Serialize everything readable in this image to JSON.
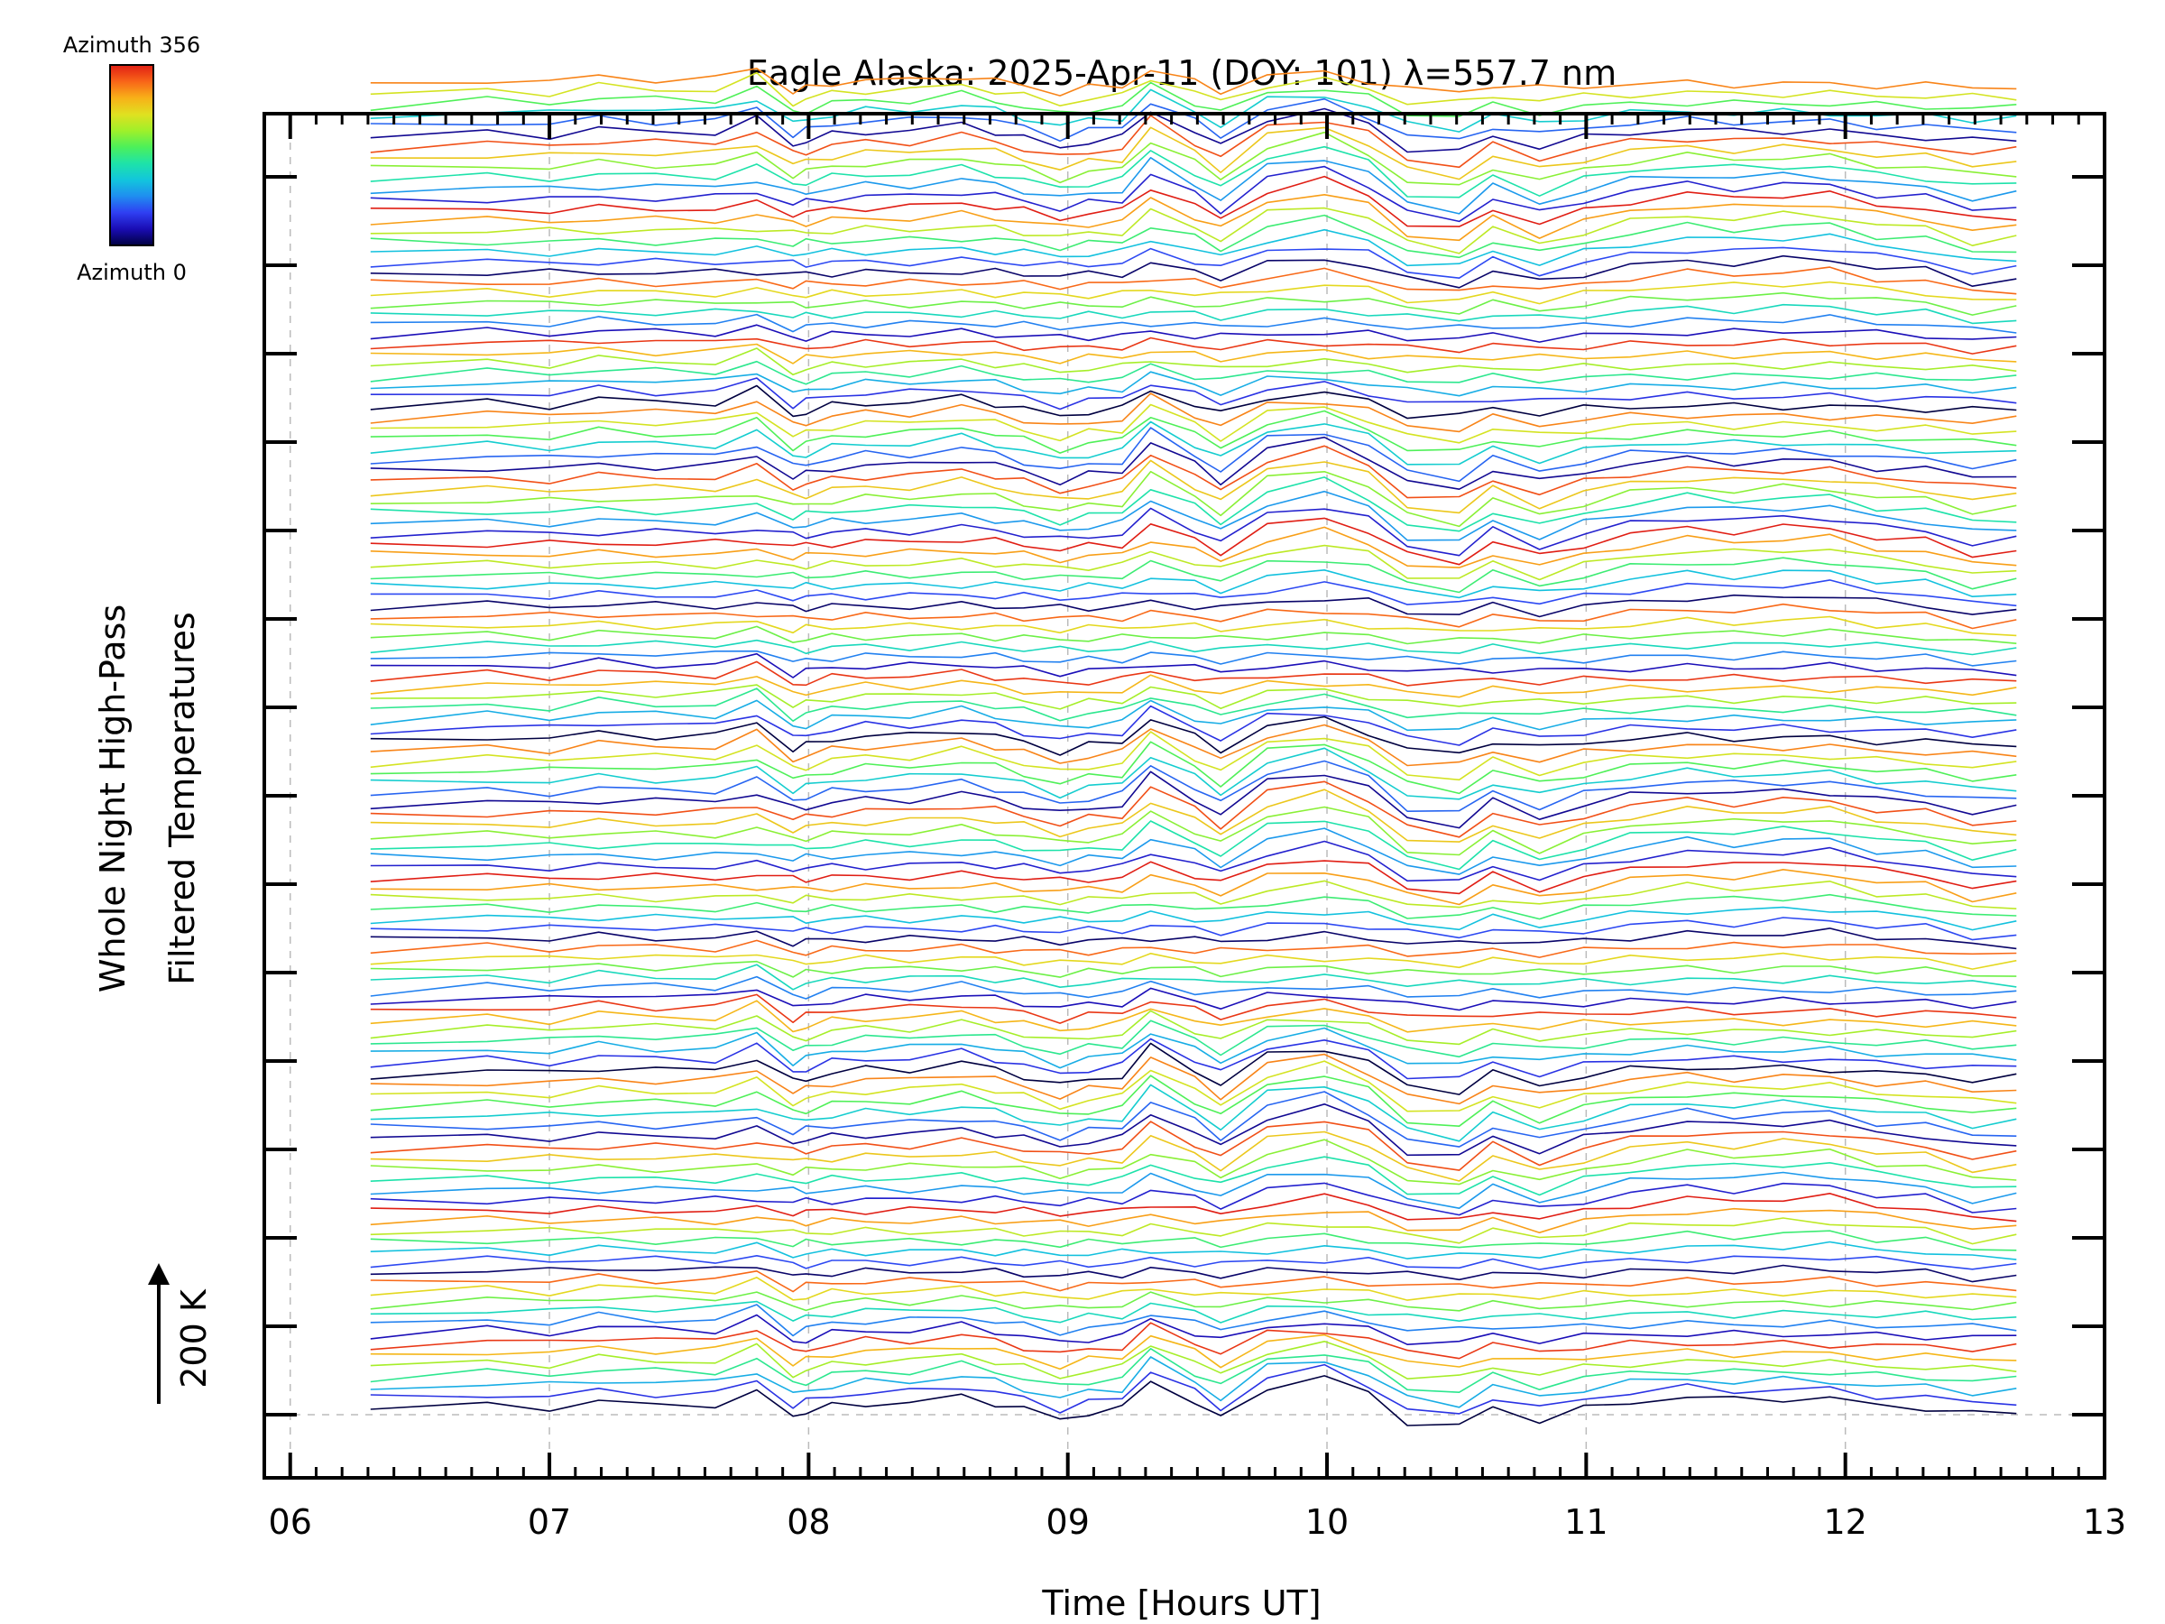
{
  "chart_data": {
    "type": "line",
    "title": "Eagle Alaska: 2025-Apr-11 (DOY: 101) λ=557.7 nm",
    "xlabel": "Time [Hours UT]",
    "ylabel_line1": "Whole Night High-Pass",
    "ylabel_line2": "Filtered Temperatures",
    "scale_bar_label": "200 K",
    "xlim": [
      5.9,
      13.0
    ],
    "x_ticks": [
      "06",
      "07",
      "08",
      "09",
      "10",
      "11",
      "12",
      "13"
    ],
    "x_tick_values": [
      6,
      7,
      8,
      9,
      10,
      11,
      12,
      13
    ],
    "grid": true,
    "colorbar": {
      "top_label": "Azimuth 356",
      "bottom_label": "Azimuth 0",
      "colormap": "rainbow"
    },
    "num_traces": 128,
    "trace_spacing_K": 50,
    "x": [
      6.31,
      6.76,
      7.0,
      7.19,
      7.41,
      7.64,
      7.8,
      7.94,
      7.99,
      8.09,
      8.22,
      8.39,
      8.59,
      8.72,
      8.83,
      8.97,
      9.08,
      9.21,
      9.32,
      9.49,
      9.59,
      9.77,
      9.99,
      10.16,
      10.31,
      10.51,
      10.64,
      10.82,
      10.99,
      11.17,
      11.39,
      11.57,
      11.76,
      11.94,
      12.12,
      12.31,
      12.49,
      12.66
    ],
    "base_profile_K": [
      0,
      10,
      5,
      15,
      10,
      10,
      30,
      -10,
      -5,
      5,
      10,
      10,
      20,
      10,
      0,
      -15,
      -5,
      0,
      45,
      10,
      -15,
      35,
      50,
      25,
      -20,
      -30,
      5,
      -20,
      0,
      15,
      25,
      20,
      25,
      25,
      10,
      5,
      -15,
      -10
    ],
    "colors": {
      "rainbow": [
        "#000040",
        "#1a0cb4",
        "#2f3ff2",
        "#1f8ef0",
        "#12c6dc",
        "#1ee3a8",
        "#4cf05a",
        "#a0f02a",
        "#e0e020",
        "#f8b018",
        "#f86418",
        "#e01e14"
      ],
      "grid": "#bbbbbb"
    }
  }
}
